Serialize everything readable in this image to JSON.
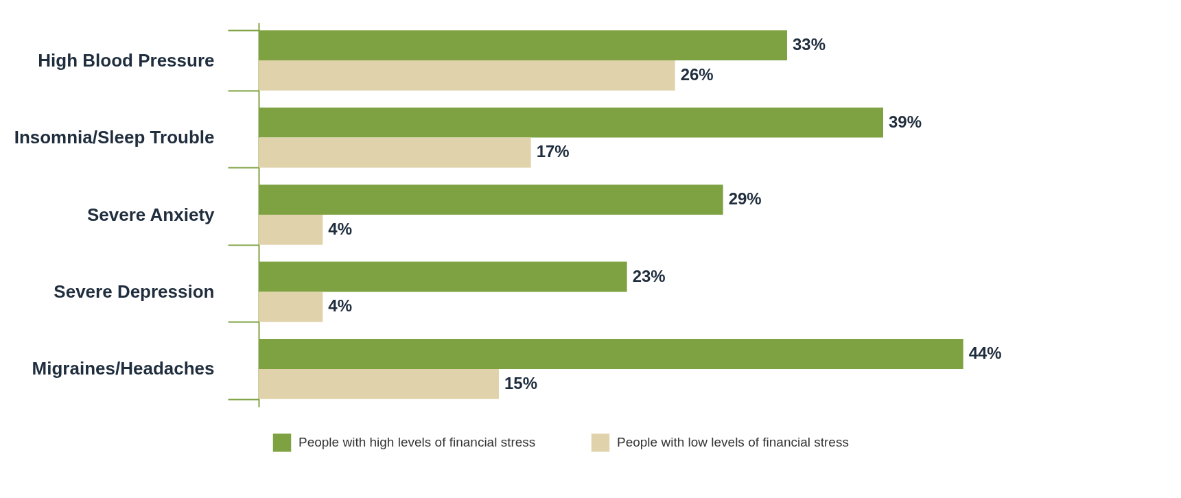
{
  "chart_data": {
    "type": "bar",
    "orientation": "horizontal",
    "categories": [
      "High Blood Pressure",
      "Insomnia/Sleep Trouble",
      "Severe Anxiety",
      "Severe Depression",
      "Migraines/Headaches"
    ],
    "series": [
      {
        "name": "People with high levels of financial stress",
        "color": "#7ea241",
        "values": [
          33,
          39,
          29,
          23,
          44
        ],
        "value_labels": [
          "33%",
          "39%",
          "29%",
          "23%",
          "44%"
        ]
      },
      {
        "name": "People with low levels of financial stress",
        "color": "#e0d3ab",
        "values": [
          26,
          17,
          4,
          4,
          15
        ],
        "value_labels": [
          "26%",
          "17%",
          "4%",
          "4%",
          "15%"
        ]
      }
    ],
    "legend": "bottom"
  }
}
